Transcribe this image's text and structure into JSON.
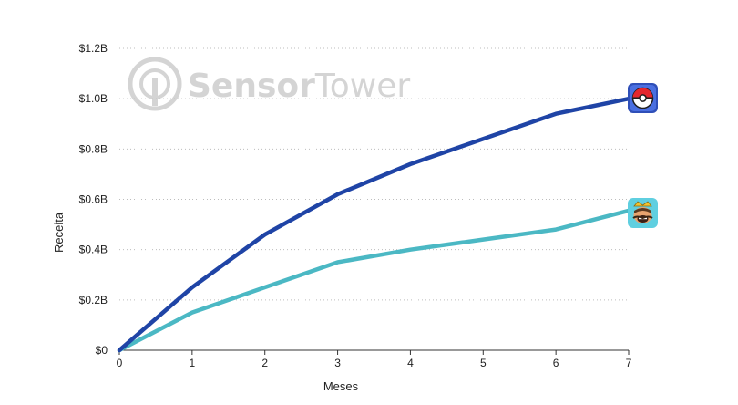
{
  "watermark": {
    "brand_part1": "Sensor",
    "brand_part2": "Tower",
    "color": "#d4d4d4"
  },
  "chart_data": {
    "type": "line",
    "title": "",
    "xlabel": "Meses",
    "ylabel": "Receita",
    "x": [
      0,
      1,
      2,
      3,
      4,
      5,
      6,
      7
    ],
    "xlim": [
      0,
      7
    ],
    "ylim": [
      0,
      1.2
    ],
    "y_ticks": [
      0,
      0.2,
      0.4,
      0.6,
      0.8,
      1.0,
      1.2
    ],
    "y_tick_labels": [
      "$0",
      "$0.2B",
      "$0.4B",
      "$0.6B",
      "$0.8B",
      "$1.0B",
      "$1.2B"
    ],
    "x_tick_labels": [
      "0",
      "1",
      "2",
      "3",
      "4",
      "5",
      "6",
      "7"
    ],
    "grid": "horizontal-dotted",
    "legend": "app icons at line ends",
    "series": [
      {
        "icon": "pokemon-go-app-icon",
        "color": "#1f44a6",
        "values": [
          0,
          0.25,
          0.46,
          0.62,
          0.74,
          0.84,
          0.94,
          1.0
        ]
      },
      {
        "icon": "clash-royale-app-icon",
        "color": "#4bb8c4",
        "values": [
          0,
          0.15,
          0.25,
          0.35,
          0.4,
          0.44,
          0.48,
          0.555
        ]
      }
    ]
  }
}
